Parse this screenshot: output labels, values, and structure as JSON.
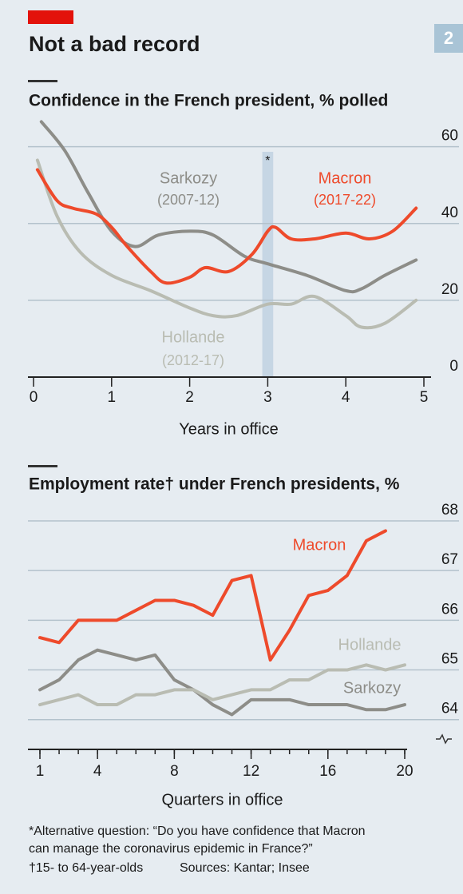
{
  "title": "Not a bad record",
  "badge": "2",
  "chart_data": [
    {
      "type": "line",
      "title": "Confidence in the French president, % polled",
      "xlabel": "Years in office",
      "xlim": [
        0,
        5
      ],
      "xticks": [
        0,
        1,
        2,
        3,
        4,
        5
      ],
      "ylim": [
        0,
        67
      ],
      "yticks": [
        0,
        20,
        40,
        60
      ],
      "grid": true,
      "shaded_x": [
        2.93,
        3.07
      ],
      "shaded_label": "*",
      "series": [
        {
          "name": "Macron",
          "term": "(2017-22)",
          "color": "#ee4a2b",
          "x": [
            0.05,
            0.3,
            0.5,
            0.8,
            1.0,
            1.2,
            1.5,
            1.7,
            2.0,
            2.2,
            2.5,
            2.8,
            3.0,
            3.1,
            3.3,
            3.6,
            4.0,
            4.3,
            4.6,
            4.9
          ],
          "values": [
            54,
            46,
            44,
            42.5,
            39,
            34,
            27.5,
            24.5,
            26,
            28.5,
            27.5,
            32,
            38,
            39,
            36,
            36,
            37.5,
            36,
            38,
            44
          ]
        },
        {
          "name": "Sarkozy",
          "term": "(2007-12)",
          "color": "#8d8d88",
          "x": [
            0.1,
            0.4,
            0.7,
            1.0,
            1.3,
            1.6,
            2.0,
            2.3,
            2.7,
            3.0,
            3.5,
            4.0,
            4.2,
            4.5,
            4.9
          ],
          "values": [
            66.5,
            59,
            48,
            38,
            34,
            37,
            38,
            37,
            31.5,
            29.5,
            26.5,
            22.5,
            23,
            26.5,
            30.5
          ]
        },
        {
          "name": "Hollande",
          "term": "(2012-17)",
          "color": "#b9bcb2",
          "x": [
            0.05,
            0.3,
            0.6,
            1.0,
            1.5,
            2.0,
            2.3,
            2.6,
            3.0,
            3.3,
            3.6,
            4.0,
            4.2,
            4.5,
            4.9
          ],
          "values": [
            56.5,
            42,
            32.5,
            26.5,
            22.5,
            18,
            16,
            16,
            19,
            19,
            21,
            16,
            13,
            14,
            20
          ]
        }
      ]
    },
    {
      "type": "line",
      "title": "Employment rate† under French presidents, %",
      "xlabel": "Quarters in office",
      "xlim": [
        1,
        20
      ],
      "xticks": [
        1,
        4,
        8,
        12,
        16,
        20
      ],
      "ylim": [
        63.4,
        68
      ],
      "yticks": [
        64,
        65,
        66,
        67,
        68
      ],
      "grid": true,
      "series": [
        {
          "name": "Macron",
          "color": "#ee4a2b",
          "x": [
            1,
            2,
            3,
            4,
            5,
            6,
            7,
            8,
            9,
            10,
            11,
            12,
            13,
            14,
            15,
            16,
            17,
            18,
            19
          ],
          "values": [
            65.65,
            65.55,
            66.0,
            66.0,
            66.0,
            66.2,
            66.4,
            66.4,
            66.3,
            66.1,
            66.8,
            66.9,
            65.2,
            65.8,
            66.5,
            66.6,
            66.9,
            67.6,
            67.8
          ]
        },
        {
          "name": "Hollande",
          "color": "#b9bcb2",
          "x": [
            1,
            2,
            3,
            4,
            5,
            6,
            7,
            8,
            9,
            10,
            11,
            12,
            13,
            14,
            15,
            16,
            17,
            18,
            19,
            20
          ],
          "values": [
            64.3,
            64.4,
            64.5,
            64.3,
            64.3,
            64.5,
            64.5,
            64.6,
            64.6,
            64.4,
            64.5,
            64.6,
            64.6,
            64.8,
            64.8,
            65.0,
            65.0,
            65.1,
            65.0,
            65.1
          ]
        },
        {
          "name": "Sarkozy",
          "color": "#8d8d88",
          "x": [
            1,
            2,
            3,
            4,
            5,
            6,
            7,
            8,
            9,
            10,
            11,
            12,
            13,
            14,
            15,
            16,
            17,
            18,
            19,
            20
          ],
          "values": [
            64.6,
            64.8,
            65.2,
            65.4,
            65.3,
            65.2,
            65.3,
            64.8,
            64.6,
            64.3,
            64.1,
            64.4,
            64.4,
            64.4,
            64.3,
            64.3,
            64.3,
            64.2,
            64.2,
            64.3
          ]
        }
      ]
    }
  ],
  "footnotes": [
    "*Alternative question: “Do you have confidence that Macron",
    "can manage the coronavirus epidemic in France?”",
    "†15- to 64-year-olds",
    "Sources: Kantar; Insee"
  ]
}
